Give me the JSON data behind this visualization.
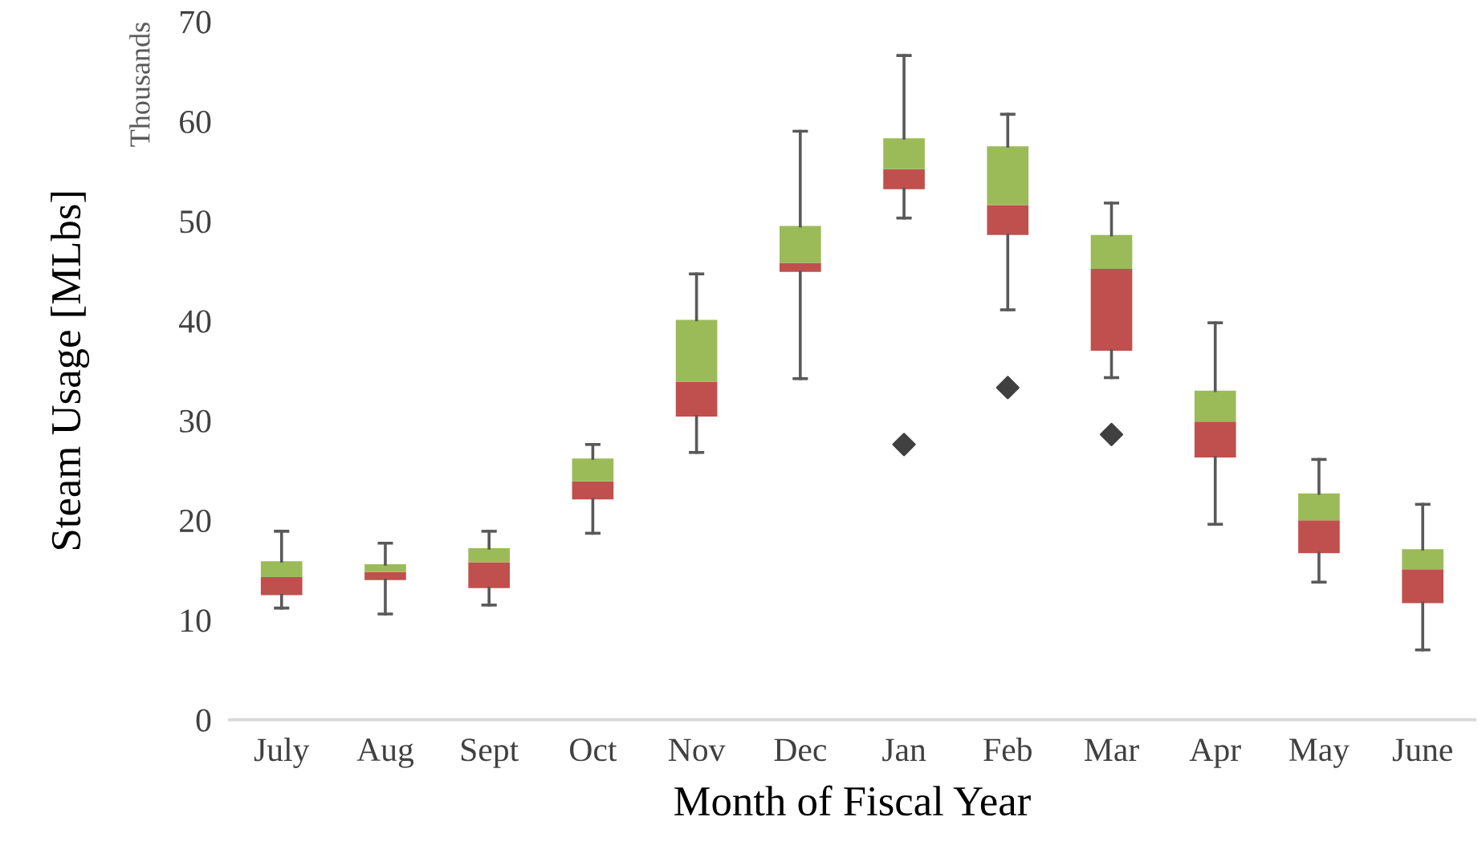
{
  "chart_data": {
    "type": "box",
    "xlabel": "Month of Fiscal Year",
    "ylabel": "Steam Usage [MLbs]",
    "annotations": [
      "Thousands"
    ],
    "categories": [
      "July",
      "Aug",
      "Sept",
      "Oct",
      "Nov",
      "Dec",
      "Jan",
      "Feb",
      "Mar",
      "Apr",
      "May",
      "June"
    ],
    "colors": [
      [
        "#c0504d",
        "#9bbb59"
      ],
      [
        "#c0504d",
        "#9bbb59"
      ],
      [
        "#c0504d",
        "#9bbb59"
      ],
      [
        "#c0504d",
        "#9bbb59"
      ],
      [
        "#c0504d",
        "#9bbb59"
      ],
      [
        "#c0504d",
        "#9bbb59"
      ],
      [
        "#c0504d",
        "#9bbb59"
      ],
      [
        "#c0504d",
        "#9bbb59"
      ],
      [
        "#c0504d",
        "#9bbb59"
      ],
      [
        "#c0504d",
        "#9bbb59"
      ],
      [
        "#c0504d",
        "#9bbb59"
      ],
      [
        "#c0504d",
        "#9bbb59"
      ]
    ],
    "marker": "diamond",
    "boxes": [
      {
        "low": 11.2,
        "q1": 12.5,
        "median": 14.3,
        "q3": 15.9,
        "high": 18.9
      },
      {
        "low": 10.6,
        "q1": 14.0,
        "median": 14.8,
        "q3": 15.6,
        "high": 17.7
      },
      {
        "low": 11.5,
        "q1": 13.2,
        "median": 15.8,
        "q3": 17.2,
        "high": 18.9
      },
      {
        "low": 18.7,
        "q1": 22.1,
        "median": 23.9,
        "q3": 26.2,
        "high": 27.6
      },
      {
        "low": 26.8,
        "q1": 30.4,
        "median": 33.9,
        "q3": 40.1,
        "high": 44.7
      },
      {
        "low": 34.2,
        "q1": 44.9,
        "median": 45.8,
        "q3": 49.5,
        "high": 59.0
      },
      {
        "low": 50.3,
        "q1": 53.2,
        "median": 55.2,
        "q3": 58.3,
        "high": 66.6,
        "outliers": [
          27.6
        ]
      },
      {
        "low": 41.1,
        "q1": 48.6,
        "median": 51.6,
        "q3": 57.5,
        "high": 60.7,
        "outliers": [
          33.3
        ]
      },
      {
        "low": 34.3,
        "q1": 37.0,
        "median": 45.2,
        "q3": 48.6,
        "high": 51.8,
        "outliers": [
          28.6
        ]
      },
      {
        "low": 19.6,
        "q1": 26.3,
        "median": 29.9,
        "q3": 33.0,
        "high": 39.8
      },
      {
        "low": 13.8,
        "q1": 16.7,
        "median": 20.0,
        "q3": 22.7,
        "high": 26.1
      },
      {
        "low": 7.0,
        "q1": 11.7,
        "median": 15.1,
        "q3": 17.1,
        "high": 21.6
      }
    ],
    "ylim": [
      0,
      70
    ],
    "yticks": [
      0,
      10,
      20,
      30,
      40,
      50,
      60,
      70
    ],
    "grid": false,
    "legend": false
  }
}
